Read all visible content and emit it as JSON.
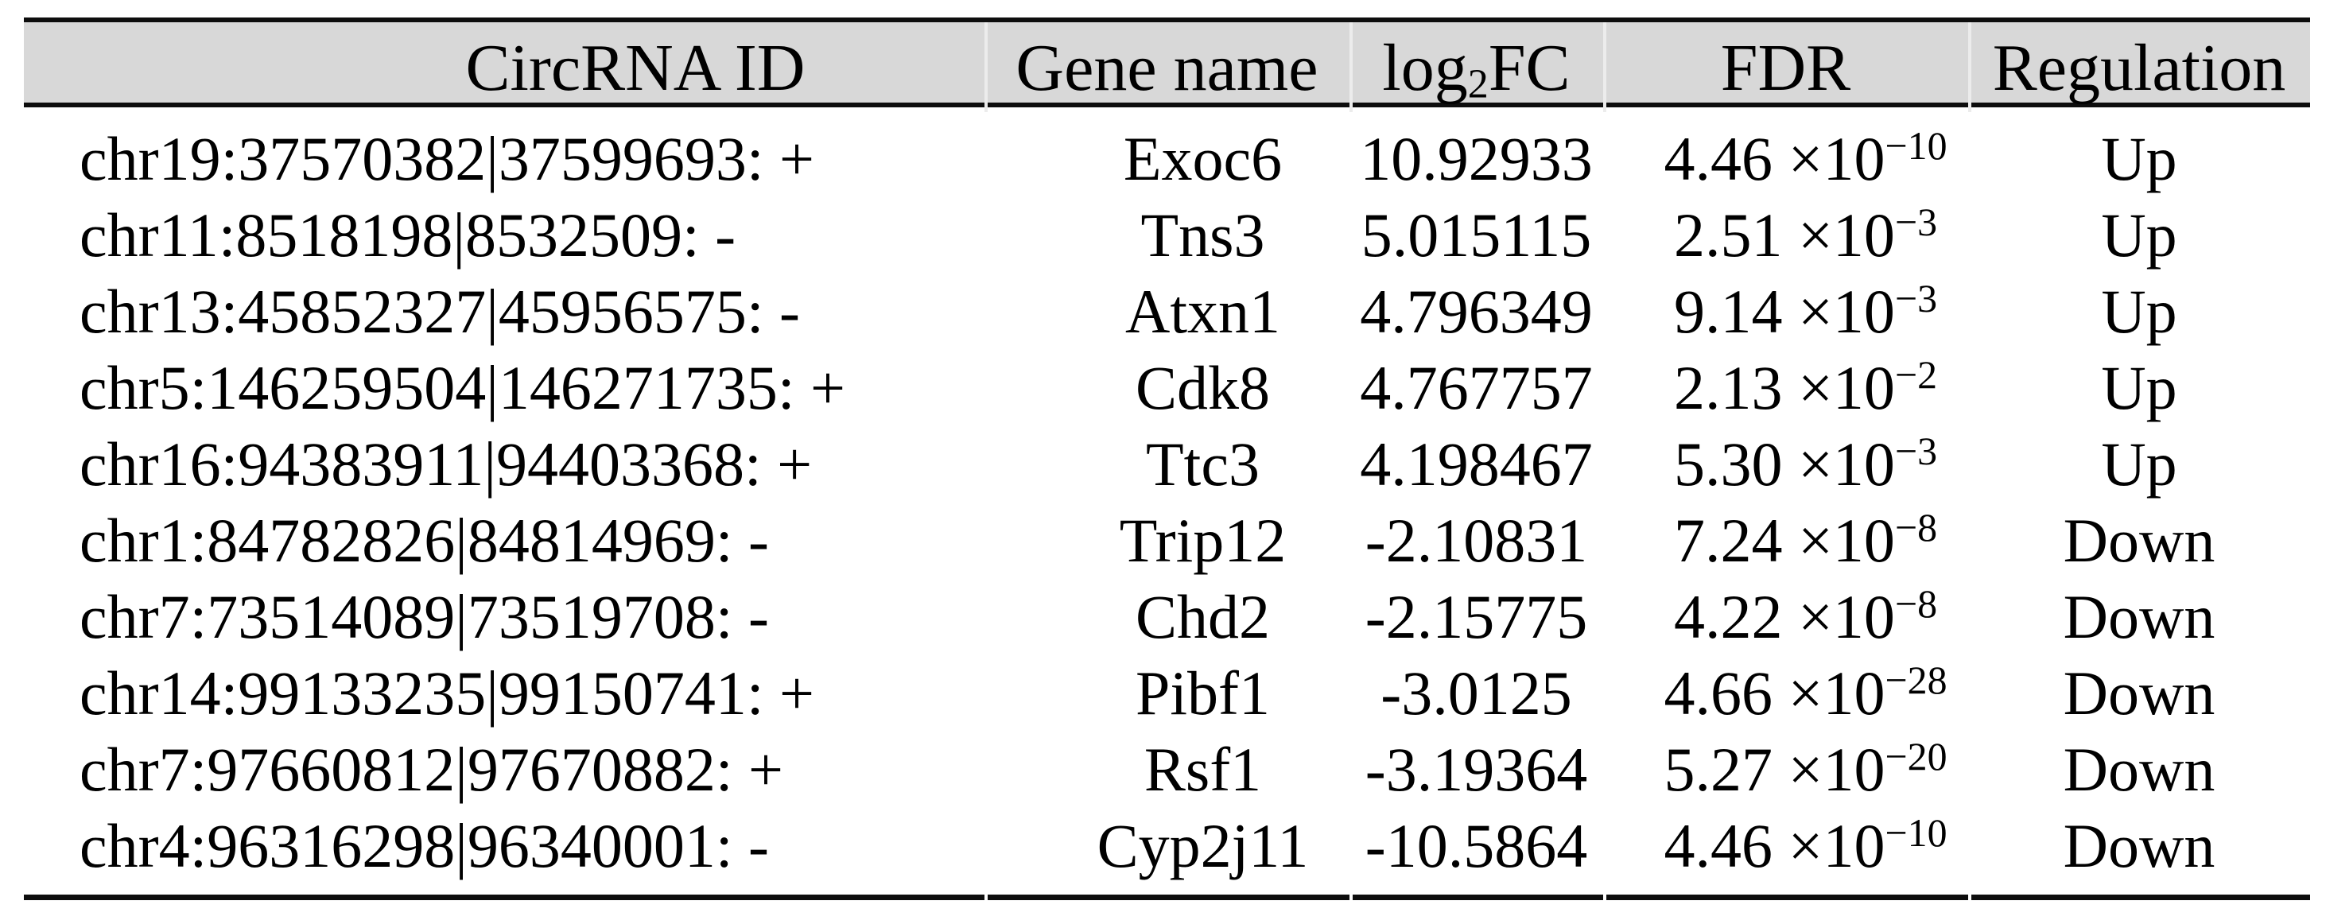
{
  "table": {
    "header": {
      "circrna_id": "CircRNA ID",
      "gene_name": "Gene name",
      "log2fc_prefix": "log",
      "log2fc_sub": "2",
      "log2fc_suffix": "FC",
      "fdr": "FDR",
      "regulation": "Regulation"
    },
    "rows": [
      {
        "circrna_id": "chr19:37570382|37599693: +",
        "gene_name": "Exoc6",
        "log2fc": "10.92933",
        "fdr_coeff": "4.46",
        "fdr_base": " ×10",
        "fdr_exp": "−10",
        "regulation": "Up"
      },
      {
        "circrna_id": "chr11:8518198|8532509: -",
        "gene_name": "Tns3",
        "log2fc": "5.015115",
        "fdr_coeff": "2.51",
        "fdr_base": " ×10",
        "fdr_exp": "−3",
        "regulation": "Up"
      },
      {
        "circrna_id": "chr13:45852327|45956575: -",
        "gene_name": "Atxn1",
        "log2fc": "4.796349",
        "fdr_coeff": "9.14",
        "fdr_base": " ×10",
        "fdr_exp": "−3",
        "regulation": "Up"
      },
      {
        "circrna_id": "chr5:146259504|146271735: +",
        "gene_name": "Cdk8",
        "log2fc": "4.767757",
        "fdr_coeff": "2.13",
        "fdr_base": " ×10",
        "fdr_exp": "−2",
        "regulation": "Up"
      },
      {
        "circrna_id": "chr16:94383911|94403368: +",
        "gene_name": "Ttc3",
        "log2fc": "4.198467",
        "fdr_coeff": "5.30",
        "fdr_base": " ×10",
        "fdr_exp": "−3",
        "regulation": "Up"
      },
      {
        "circrna_id": "chr1:84782826|84814969: -",
        "gene_name": "Trip12",
        "log2fc": "-2.10831",
        "fdr_coeff": "7.24",
        "fdr_base": " ×10",
        "fdr_exp": "−8",
        "regulation": "Down"
      },
      {
        "circrna_id": "chr7:73514089|73519708: -",
        "gene_name": "Chd2",
        "log2fc": "-2.15775",
        "fdr_coeff": "4.22",
        "fdr_base": " ×10",
        "fdr_exp": "−8",
        "regulation": "Down"
      },
      {
        "circrna_id": "chr14:99133235|99150741: +",
        "gene_name": "Pibf1",
        "log2fc": "-3.0125",
        "fdr_coeff": "4.66",
        "fdr_base": " ×10",
        "fdr_exp": "−28",
        "regulation": "Down"
      },
      {
        "circrna_id": "chr7:97660812|97670882: +",
        "gene_name": "Rsf1",
        "log2fc": "-3.19364",
        "fdr_coeff": "5.27",
        "fdr_base": " ×10",
        "fdr_exp": "−20",
        "regulation": "Down"
      },
      {
        "circrna_id": "chr4:96316298|96340001: -",
        "gene_name": "Cyp2j11",
        "log2fc": "-10.5864",
        "fdr_coeff": "4.46",
        "fdr_base": " ×10",
        "fdr_exp": "−10",
        "regulation": "Down"
      }
    ]
  },
  "colors": {
    "header_bg": "#d8d8d8",
    "rule": "#0d0d0d",
    "text": "#000000",
    "page_bg": "#ffffff"
  },
  "chart_data": {
    "type": "table",
    "title": "",
    "columns": [
      "CircRNA ID",
      "Gene name",
      "log2FC",
      "FDR",
      "Regulation"
    ],
    "rows": [
      [
        "chr19:37570382|37599693: +",
        "Exoc6",
        10.92933,
        "4.46e-10",
        "Up"
      ],
      [
        "chr11:8518198|8532509: -",
        "Tns3",
        5.015115,
        "2.51e-3",
        "Up"
      ],
      [
        "chr13:45852327|45956575: -",
        "Atxn1",
        4.796349,
        "9.14e-3",
        "Up"
      ],
      [
        "chr5:146259504|146271735: +",
        "Cdk8",
        4.767757,
        "2.13e-2",
        "Up"
      ],
      [
        "chr16:94383911|94403368: +",
        "Ttc3",
        4.198467,
        "5.30e-3",
        "Up"
      ],
      [
        "chr1:84782826|84814969: -",
        "Trip12",
        -2.10831,
        "7.24e-8",
        "Down"
      ],
      [
        "chr7:73514089|73519708: -",
        "Chd2",
        -2.15775,
        "4.22e-8",
        "Down"
      ],
      [
        "chr14:99133235|99150741: +",
        "Pibf1",
        -3.0125,
        "4.66e-28",
        "Down"
      ],
      [
        "chr7:97660812|97670882: +",
        "Rsf1",
        -3.19364,
        "5.27e-20",
        "Down"
      ],
      [
        "chr4:96316298|96340001: -",
        "Cyp2j11",
        -10.5864,
        "4.46e-10",
        "Down"
      ]
    ]
  }
}
